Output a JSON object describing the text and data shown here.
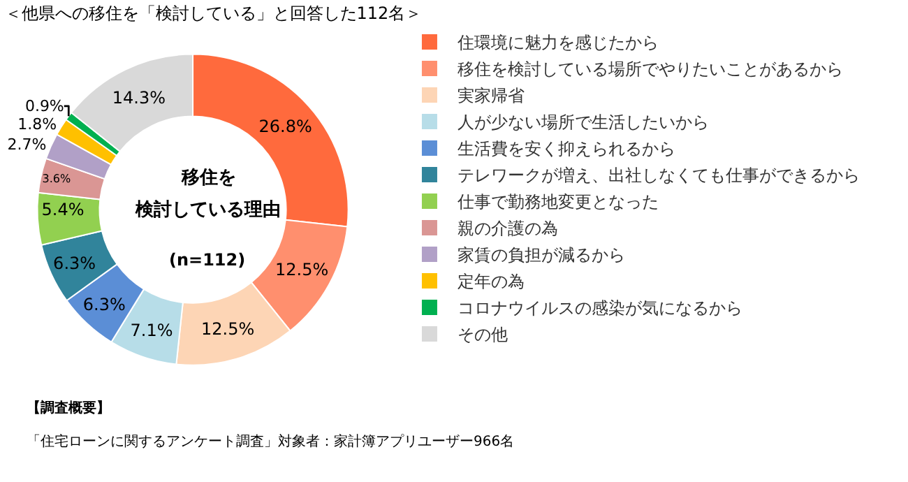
{
  "chart_data": {
    "type": "donut",
    "title": "＜他県への移住を「検討している」と回答した112名＞",
    "categories": [
      "住環境に魅力を感じたから",
      "移住を検討している場所でやりたいことがあるから",
      "実家帰省",
      "人が少ない場所で生活したいから",
      "生活費を安く抑えられるから",
      "テレワークが増え、出社しなくても仕事ができるから",
      "仕事で勤務地変更となった",
      "親の介護の為",
      "家賃の負担が減るから",
      "定年の為",
      "コロナウイルスの感染が気になるから",
      "その他"
    ],
    "values": [
      26.8,
      12.5,
      12.5,
      7.1,
      6.3,
      6.3,
      5.4,
      3.6,
      2.7,
      1.8,
      0.9,
      14.3
    ],
    "value_labels": [
      "26.8%",
      "12.5%",
      "12.5%",
      "7.1%",
      "6.3%",
      "6.3%",
      "5.4%",
      "3.6%",
      "2.7%",
      "1.8%",
      "0.9%",
      "14.3%"
    ],
    "colors": [
      "#ff6a3d",
      "#ff8f6e",
      "#fdd5b5",
      "#b7dde8",
      "#5b8ed6",
      "#31849b",
      "#92d050",
      "#da9694",
      "#b1a0c7",
      "#ffc000",
      "#00b050",
      "#d9d9d9"
    ],
    "annotations": [
      "移住を",
      "検討している理由",
      "(n=112)",
      "【調査概要】",
      "「住宅ローンに関するアンケート調査」対象者：家計簿アプリユーザー966名"
    ],
    "legend": "right"
  }
}
